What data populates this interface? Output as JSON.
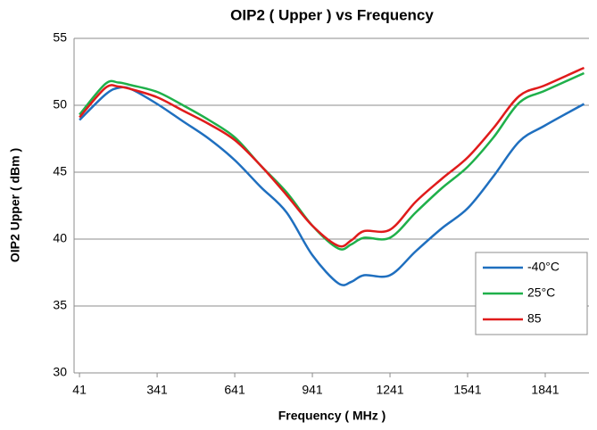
{
  "chart_data": {
    "type": "line",
    "title": "OIP2 ( Upper ) vs Frequency",
    "x_label": "Frequency ( MHz )",
    "y_label": "OIP2 Upper ( dBm )",
    "x": [
      41,
      141,
      191,
      241,
      341,
      441,
      541,
      641,
      741,
      841,
      941,
      1041,
      1091,
      1141,
      1241,
      1341,
      1441,
      1541,
      1641,
      1741,
      1841,
      1991
    ],
    "series": [
      {
        "name": "-40°C",
        "color": "#1f6fbf",
        "values": [
          48.9,
          50.8,
          51.3,
          51.2,
          50.1,
          48.8,
          47.5,
          45.9,
          43.9,
          42.0,
          38.8,
          36.7,
          36.8,
          37.3,
          37.3,
          39.1,
          40.8,
          42.3,
          44.7,
          47.3,
          48.5,
          50.1
        ]
      },
      {
        "name": "25°C",
        "color": "#1fb04a",
        "values": [
          49.3,
          51.6,
          51.7,
          51.5,
          51.0,
          50.0,
          48.9,
          47.6,
          45.5,
          43.5,
          41.0,
          39.3,
          39.6,
          40.1,
          40.1,
          42.0,
          43.8,
          45.4,
          47.6,
          50.2,
          51.1,
          52.4
        ]
      },
      {
        "name": "85",
        "color": "#e01b1b",
        "values": [
          49.1,
          51.3,
          51.4,
          51.2,
          50.6,
          49.6,
          48.6,
          47.4,
          45.5,
          43.3,
          41.0,
          39.5,
          39.9,
          40.6,
          40.7,
          42.8,
          44.5,
          46.1,
          48.3,
          50.7,
          51.5,
          52.8
        ]
      }
    ],
    "xlim": [
      20,
      2010
    ],
    "xticks": [
      41,
      341,
      641,
      941,
      1241,
      1541,
      1841
    ],
    "ylim": [
      30,
      55
    ],
    "yticks": [
      30,
      35,
      40,
      45,
      50,
      55
    ],
    "grid": true,
    "legend": "lower right"
  }
}
